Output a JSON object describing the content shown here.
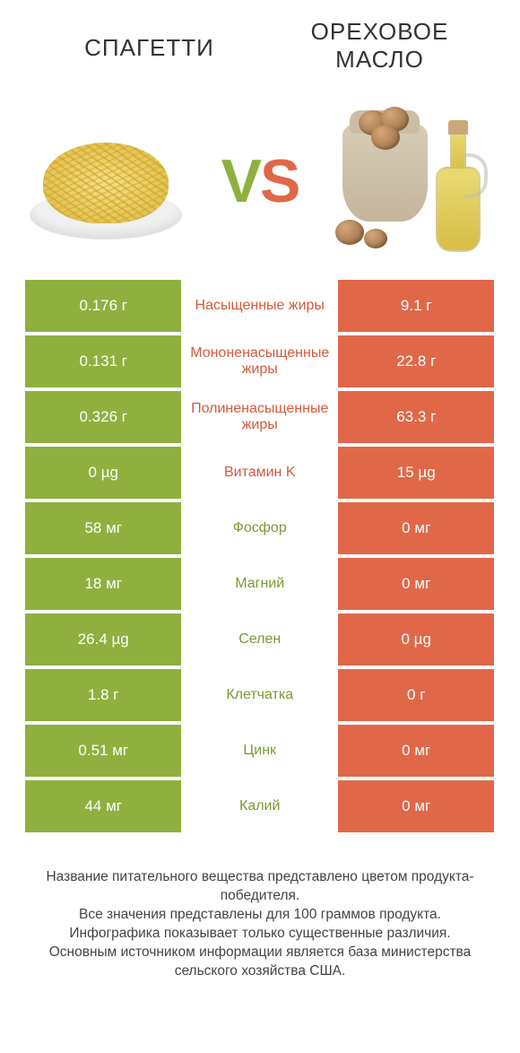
{
  "colors": {
    "green": "#8fb03e",
    "orange": "#e06849",
    "green_text": "#7a9a34",
    "orange_text": "#d45a3c",
    "white": "#ffffff"
  },
  "header": {
    "left_title": "Спагетти",
    "right_title": "Ореховое масло",
    "vs_v": "V",
    "vs_s": "S"
  },
  "rows": [
    {
      "left": "0.176 г",
      "mid": "Насыщенные жиры",
      "right": "9.1 г",
      "winner": "right"
    },
    {
      "left": "0.131 г",
      "mid": "Мононенасыщенные жиры",
      "right": "22.8 г",
      "winner": "right"
    },
    {
      "left": "0.326 г",
      "mid": "Полиненасыщенные жиры",
      "right": "63.3 г",
      "winner": "right"
    },
    {
      "left": "0 µg",
      "mid": "Витамин K",
      "right": "15 µg",
      "winner": "right"
    },
    {
      "left": "58 мг",
      "mid": "Фосфор",
      "right": "0 мг",
      "winner": "left"
    },
    {
      "left": "18 мг",
      "mid": "Магний",
      "right": "0 мг",
      "winner": "left"
    },
    {
      "left": "26.4 µg",
      "mid": "Селен",
      "right": "0 µg",
      "winner": "left"
    },
    {
      "left": "1.8 г",
      "mid": "Клетчатка",
      "right": "0 г",
      "winner": "left"
    },
    {
      "left": "0.51 мг",
      "mid": "Цинк",
      "right": "0 мг",
      "winner": "left"
    },
    {
      "left": "44 мг",
      "mid": "Калий",
      "right": "0 мг",
      "winner": "left"
    }
  ],
  "footer": {
    "line1": "Название питательного вещества представлено цветом продукта-победителя.",
    "line2": "Все значения представлены для 100 граммов продукта.",
    "line3": "Инфографика показывает только существенные различия.",
    "line4": "Основным источником информации является база министерства сельского хозяйства США."
  }
}
